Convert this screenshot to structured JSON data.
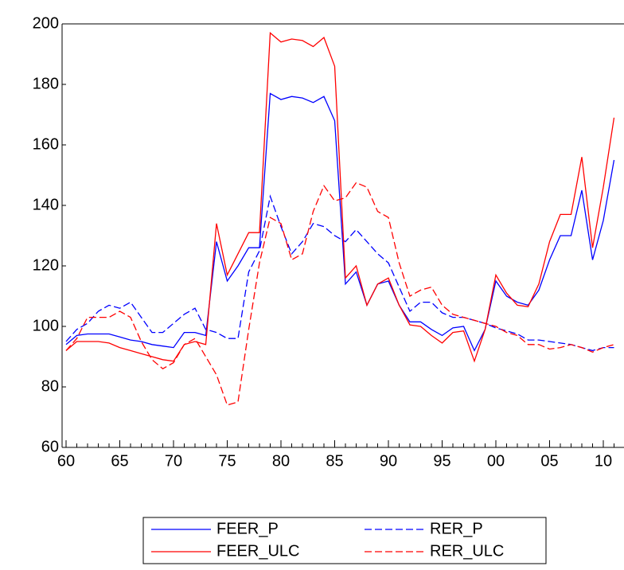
{
  "chart_data": {
    "type": "line",
    "categories": [
      "60",
      null,
      null,
      null,
      null,
      "65",
      null,
      null,
      null,
      null,
      "70",
      null,
      null,
      null,
      null,
      "75",
      null,
      null,
      null,
      null,
      "80",
      null,
      null,
      null,
      null,
      "85",
      null,
      null,
      null,
      null,
      "90",
      null,
      null,
      null,
      null,
      "95",
      null,
      null,
      null,
      null,
      "00",
      null,
      null,
      null,
      null,
      "05",
      null,
      null,
      null,
      null,
      "10",
      null
    ],
    "ylim": [
      60,
      200
    ],
    "yticks": [
      60,
      80,
      100,
      120,
      140,
      160,
      180,
      200
    ],
    "series": [
      {
        "name": "FEER_P",
        "color": "#0000ff",
        "dash": false,
        "values": [
          94,
          97,
          97.5,
          97.5,
          97.5,
          96.5,
          95.5,
          95,
          94,
          93.5,
          93,
          98,
          98,
          97,
          128,
          115,
          120,
          126,
          126,
          177,
          175,
          176,
          175.5,
          174,
          176,
          168,
          114,
          118,
          107,
          114,
          115,
          107,
          101.5,
          101.5,
          99,
          97,
          99.5,
          100,
          92,
          99,
          115,
          110,
          108,
          107,
          112,
          122,
          130,
          130,
          145,
          122,
          135,
          155
        ]
      },
      {
        "name": "RER_P",
        "color": "#0000ff",
        "dash": true,
        "values": [
          95,
          99,
          101,
          105,
          107,
          106,
          108,
          103,
          98,
          98,
          101,
          104,
          106,
          99,
          98,
          96,
          96,
          118,
          125,
          143,
          133,
          124,
          128,
          134,
          133,
          130,
          128,
          132,
          128,
          124,
          121,
          113,
          105,
          108,
          108,
          104.5,
          103,
          103,
          102,
          101,
          99.5,
          98.5,
          97.5,
          95.5,
          95.5,
          95,
          94.5,
          94,
          93,
          92,
          93,
          93
        ]
      },
      {
        "name": "FEER_ULC",
        "color": "#ff0000",
        "dash": false,
        "values": [
          92,
          95,
          95,
          95,
          94.5,
          93,
          92,
          91,
          90,
          89,
          88.5,
          94,
          95,
          94,
          134,
          117,
          124,
          131,
          131,
          197,
          194,
          195,
          194.5,
          192.5,
          195.5,
          186,
          116,
          120,
          107,
          114,
          116,
          107,
          100.5,
          100,
          97,
          94.5,
          98,
          98.5,
          88.5,
          99,
          117,
          111,
          107,
          106.5,
          114,
          128,
          137,
          137,
          156,
          126,
          146,
          169
        ]
      },
      {
        "name": "RER_ULC",
        "color": "#ff0000",
        "dash": true,
        "values": [
          92,
          96,
          103,
          103,
          103,
          105,
          103,
          95,
          89,
          86,
          88,
          94,
          96,
          90,
          84,
          74,
          75,
          99,
          121,
          136,
          134,
          122,
          124,
          138,
          146.5,
          141.5,
          142.5,
          147.5,
          146,
          138,
          136,
          121,
          110,
          112,
          113,
          107,
          104,
          103,
          102,
          101,
          100,
          98,
          97,
          94,
          94,
          92.5,
          93,
          94,
          93,
          91.5,
          93,
          94
        ]
      }
    ]
  }
}
